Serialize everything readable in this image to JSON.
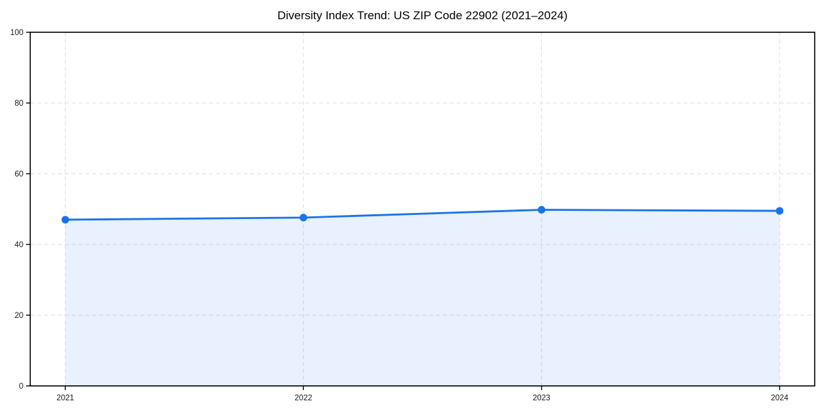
{
  "chart_data": {
    "type": "area",
    "title": "Diversity Index Trend: US ZIP Code 22902 (2021–2024)",
    "categories": [
      "2021",
      "2022",
      "2023",
      "2024"
    ],
    "series": [
      {
        "name": "Diversity Index",
        "values": [
          47.0,
          47.6,
          49.8,
          49.5
        ]
      }
    ],
    "xlabel": "",
    "ylabel": "",
    "ylim": [
      0,
      100
    ],
    "yticks": [
      0,
      20,
      40,
      60,
      80,
      100
    ],
    "grid": {
      "shown": true,
      "style": "dashed",
      "axes": "both"
    },
    "legend": "none",
    "marker": "circle",
    "colors": {
      "line": "#1a73e8",
      "marker": "#1a73e8",
      "fill": "rgba(26,115,232,0.10)",
      "grid": "#dedede",
      "axis": "#000000",
      "tick_label": "#1a1a1a",
      "title": "#000000",
      "background": "#ffffff"
    }
  }
}
